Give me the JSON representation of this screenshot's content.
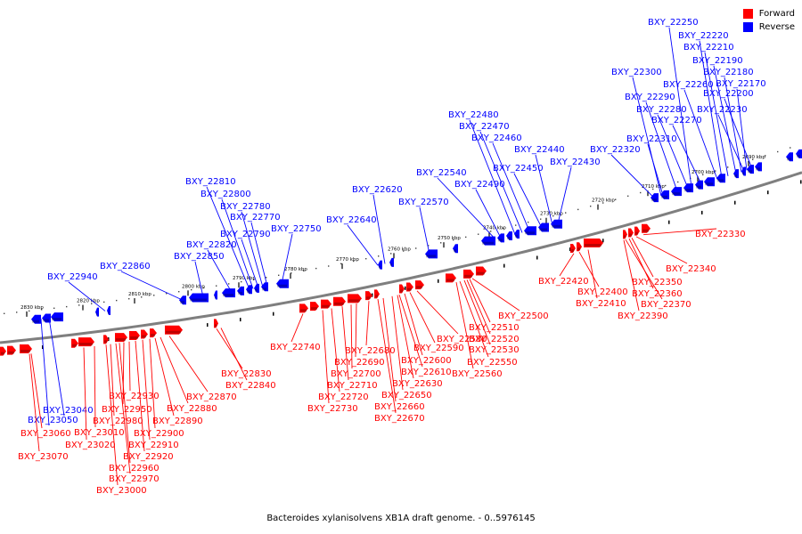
{
  "legend": {
    "forward_label": "Forward",
    "reverse_label": "Reverse",
    "forward_color": "#ff0000",
    "reverse_color": "#0000ff"
  },
  "caption": "Bacteroides xylanisolvens XB1A draft genome. - 0..5976145",
  "colors": {
    "forward": "#ff0000",
    "reverse": "#0000ff",
    "backbone": "#7f7f7f"
  },
  "ticks": [
    "2830 kbp",
    "2820 kbp",
    "2810 kbp",
    "2800 kbp",
    "2790 kbp",
    "2780 kbp",
    "2770 kbp",
    "2760 kbp",
    "2750 kbp",
    "2740 kbp",
    "2730 kbp",
    "2720 kbp",
    "2710 kbp",
    "2700 kbp",
    "2690 kbp"
  ],
  "reverse_genes": [
    "BXY_22250",
    "BXY_22220",
    "BXY_22210",
    "BXY_22190",
    "BXY_22180",
    "BXY_22170",
    "BXY_22200",
    "BXY_22230",
    "BXY_22300",
    "BXY_22260",
    "BXY_22290",
    "BXY_22280",
    "BXY_22270",
    "BXY_22310",
    "BXY_22320",
    "BXY_22480",
    "BXY_22470",
    "BXY_22460",
    "BXY_22440",
    "BXY_22450",
    "BXY_22430",
    "BXY_22540",
    "BXY_22490",
    "BXY_22620",
    "BXY_22570",
    "BXY_22640",
    "BXY_22810",
    "BXY_22800",
    "BXY_22780",
    "BXY_22770",
    "BXY_22790",
    "BXY_22750",
    "BXY_22820",
    "BXY_22850",
    "BXY_22860",
    "BXY_22940",
    "BXY_23040",
    "BXY_23050"
  ],
  "forward_genes": [
    "BXY_22330",
    "BXY_22340",
    "BXY_22350",
    "BXY_22360",
    "BXY_22370",
    "BXY_22390",
    "BXY_22420",
    "BXY_22400",
    "BXY_22410",
    "BXY_22500",
    "BXY_22510",
    "BXY_22520",
    "BXY_22530",
    "BXY_22550",
    "BXY_22560",
    "BXY_22580",
    "BXY_22590",
    "BXY_22600",
    "BXY_22610",
    "BXY_22630",
    "BXY_22650",
    "BXY_22660",
    "BXY_22670",
    "BXY_22680",
    "BXY_22690",
    "BXY_22700",
    "BXY_22710",
    "BXY_22720",
    "BXY_22730",
    "BXY_22740",
    "BXY_22830",
    "BXY_22840",
    "BXY_22870",
    "BXY_22880",
    "BXY_22890",
    "BXY_22900",
    "BXY_22910",
    "BXY_22920",
    "BXY_22930",
    "BXY_22950",
    "BXY_22960",
    "BXY_22970",
    "BXY_22980",
    "BXY_23000",
    "BXY_23010",
    "BXY_23020",
    "BXY_23060",
    "BXY_23070"
  ]
}
